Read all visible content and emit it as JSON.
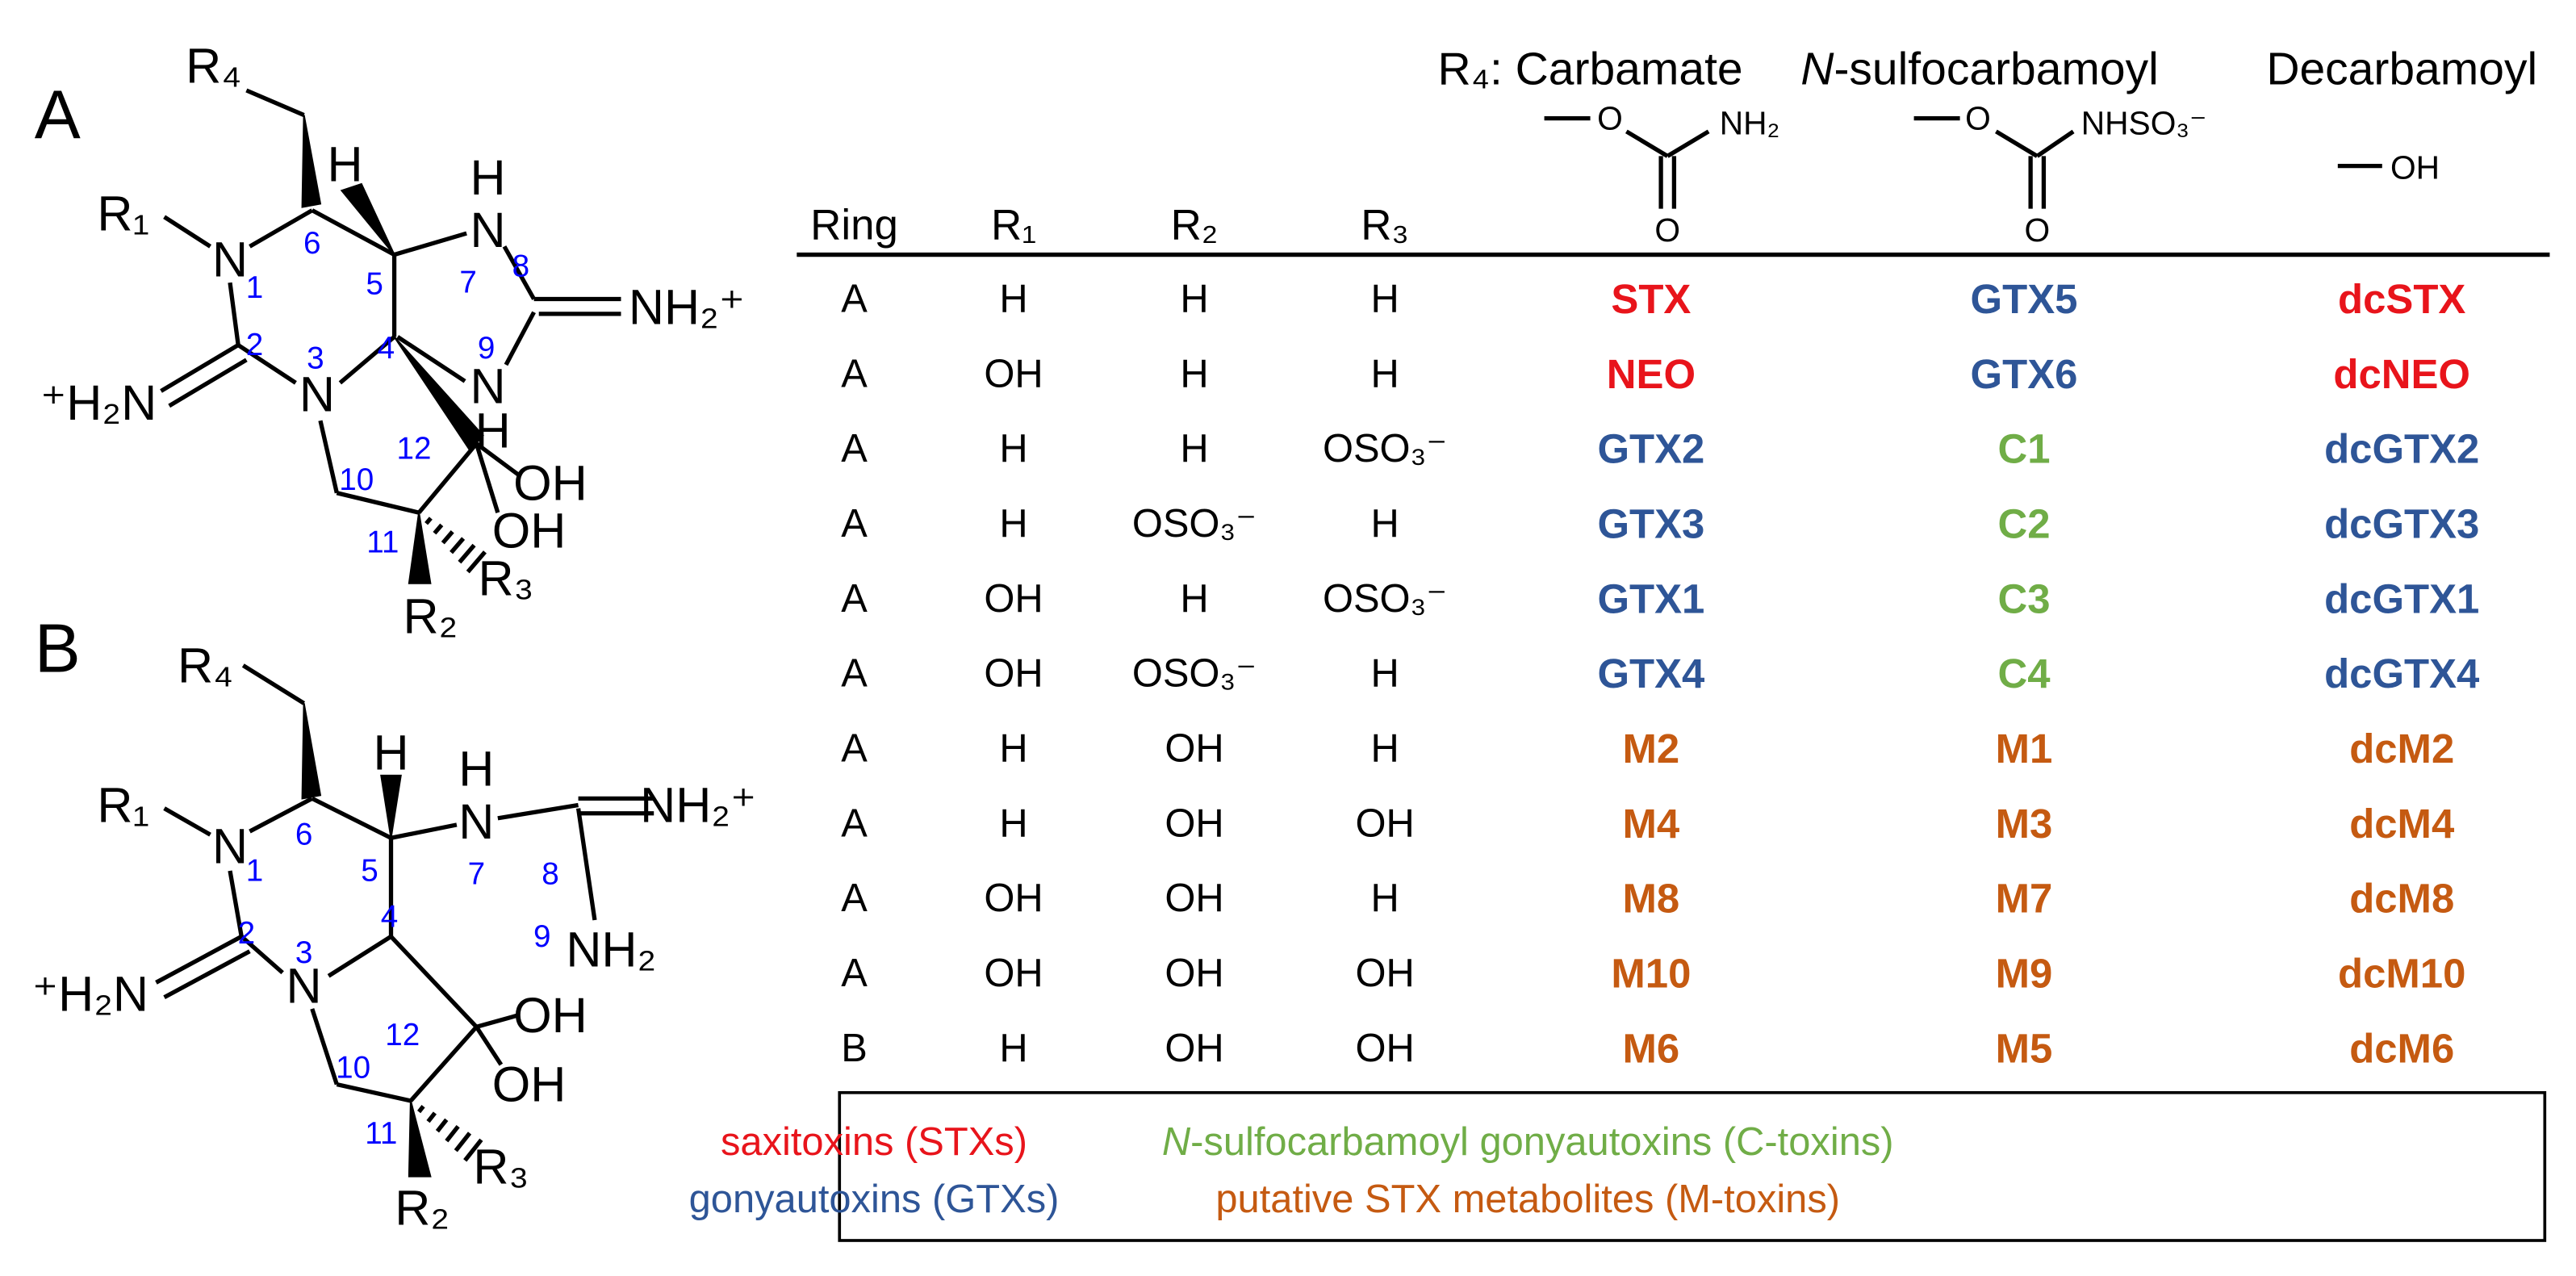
{
  "panels": [
    {
      "label": "A",
      "atoms": [
        "R₄",
        "R₁",
        "N",
        "⁺H₂N",
        "N",
        "H",
        "H",
        "N",
        "NH₂⁺",
        "N",
        "H",
        "OH",
        "OH",
        "R₃",
        "R₂"
      ],
      "numbers": [
        "1",
        "2",
        "3",
        "4",
        "5",
        "6",
        "7",
        "8",
        "9",
        "10",
        "11",
        "12"
      ]
    },
    {
      "label": "B",
      "atoms": [
        "R₄",
        "R₁",
        "N",
        "⁺H₂N",
        "N",
        "H",
        "H",
        "N",
        "NH₂⁺",
        "NH₂",
        "OH",
        "OH",
        "R₃",
        "R₂"
      ],
      "numbers": [
        "1",
        "2",
        "3",
        "4",
        "5",
        "6",
        "7",
        "8",
        "9",
        "10",
        "11",
        "12"
      ]
    }
  ],
  "table": {
    "group_headers": [
      {
        "text": "R₄: Carbamate"
      },
      {
        "italic": "N",
        "text": "-sulfocarbamoyl"
      },
      {
        "text": "Decarbamoyl"
      }
    ],
    "group_structures": [
      [
        "O",
        "NH₂",
        "O"
      ],
      [
        "O",
        "NHSO₃⁻",
        "O"
      ],
      [
        "OH"
      ]
    ],
    "columns": [
      "Ring",
      "R₁",
      "R₂",
      "R₃"
    ],
    "rows": [
      {
        "cells": [
          "A",
          "H",
          "H",
          "H"
        ],
        "toxins": [
          {
            "name": "STX",
            "color": "#e8141b"
          },
          {
            "name": "GTX5",
            "color": "#2e5597"
          },
          {
            "name": "dcSTX",
            "color": "#e8141b"
          }
        ]
      },
      {
        "cells": [
          "A",
          "OH",
          "H",
          "H"
        ],
        "toxins": [
          {
            "name": "NEO",
            "color": "#e8141b"
          },
          {
            "name": "GTX6",
            "color": "#2e5597"
          },
          {
            "name": "dcNEO",
            "color": "#e8141b"
          }
        ]
      },
      {
        "cells": [
          "A",
          "H",
          "H",
          "OSO₃⁻"
        ],
        "toxins": [
          {
            "name": "GTX2",
            "color": "#2e5597"
          },
          {
            "name": "C1",
            "color": "#70ad47"
          },
          {
            "name": "dcGTX2",
            "color": "#2e5597"
          }
        ]
      },
      {
        "cells": [
          "A",
          "H",
          "OSO₃⁻",
          "H"
        ],
        "toxins": [
          {
            "name": "GTX3",
            "color": "#2e5597"
          },
          {
            "name": "C2",
            "color": "#70ad47"
          },
          {
            "name": "dcGTX3",
            "color": "#2e5597"
          }
        ]
      },
      {
        "cells": [
          "A",
          "OH",
          "H",
          "OSO₃⁻"
        ],
        "toxins": [
          {
            "name": "GTX1",
            "color": "#2e5597"
          },
          {
            "name": "C3",
            "color": "#70ad47"
          },
          {
            "name": "dcGTX1",
            "color": "#2e5597"
          }
        ]
      },
      {
        "cells": [
          "A",
          "OH",
          "OSO₃⁻",
          "H"
        ],
        "toxins": [
          {
            "name": "GTX4",
            "color": "#2e5597"
          },
          {
            "name": "C4",
            "color": "#70ad47"
          },
          {
            "name": "dcGTX4",
            "color": "#2e5597"
          }
        ]
      },
      {
        "cells": [
          "A",
          "H",
          "OH",
          "H"
        ],
        "toxins": [
          {
            "name": "M2",
            "color": "#c55a11"
          },
          {
            "name": "M1",
            "color": "#c55a11"
          },
          {
            "name": "dcM2",
            "color": "#c55a11"
          }
        ]
      },
      {
        "cells": [
          "A",
          "H",
          "OH",
          "OH"
        ],
        "toxins": [
          {
            "name": "M4",
            "color": "#c55a11"
          },
          {
            "name": "M3",
            "color": "#c55a11"
          },
          {
            "name": "dcM4",
            "color": "#c55a11"
          }
        ]
      },
      {
        "cells": [
          "A",
          "OH",
          "OH",
          "H"
        ],
        "toxins": [
          {
            "name": "M8",
            "color": "#c55a11"
          },
          {
            "name": "M7",
            "color": "#c55a11"
          },
          {
            "name": "dcM8",
            "color": "#c55a11"
          }
        ]
      },
      {
        "cells": [
          "A",
          "OH",
          "OH",
          "OH"
        ],
        "toxins": [
          {
            "name": "M10",
            "color": "#c55a11"
          },
          {
            "name": "M9",
            "color": "#c55a11"
          },
          {
            "name": "dcM10",
            "color": "#c55a11"
          }
        ]
      },
      {
        "cells": [
          "B",
          "H",
          "OH",
          "OH"
        ],
        "toxins": [
          {
            "name": "M6",
            "color": "#c55a11"
          },
          {
            "name": "M5",
            "color": "#c55a11"
          },
          {
            "name": "dcM6",
            "color": "#c55a11"
          }
        ]
      }
    ]
  },
  "legend": [
    {
      "text": "saxitoxins (STXs)",
      "color": "#e8141b"
    },
    {
      "text": "gonyautoxins (GTXs)",
      "color": "#2e5597"
    },
    {
      "italic": "N",
      "text": "-sulfocarbamoyl gonyautoxins (C-toxins)",
      "color": "#70ad47"
    },
    {
      "text": "putative STX metabolites (M-toxins)",
      "color": "#c55a11"
    }
  ]
}
